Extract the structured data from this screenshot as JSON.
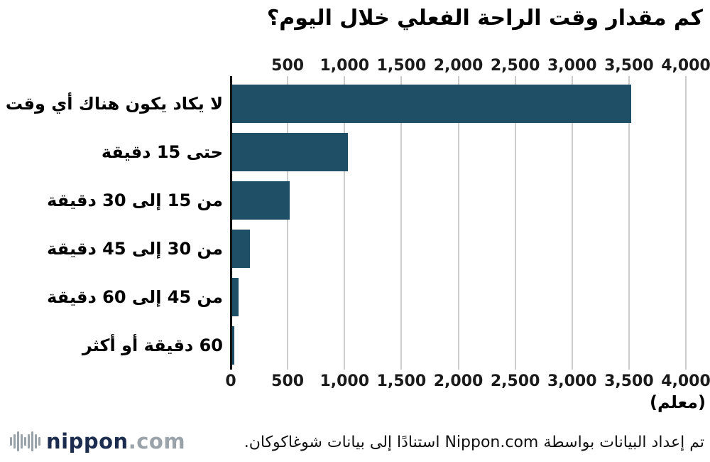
{
  "chart_data": {
    "type": "bar",
    "orientation": "horizontal",
    "title": "كم مقدار وقت الراحة الفعلي خلال اليوم؟",
    "categories": [
      "لا يكاد يكون هناك أي وقت",
      "حتى 15 دقيقة",
      "من 15 إلى 30 دقيقة",
      "من 30 إلى 45 دقيقة",
      "من 45 إلى 60 دقيقة",
      "60 دقيقة أو أكثر"
    ],
    "values": [
      3520,
      1030,
      520,
      170,
      70,
      30
    ],
    "xlim": [
      0,
      4000
    ],
    "grid": true,
    "legend": false,
    "gridline_values": [
      500,
      1000,
      1500,
      2000,
      2500,
      3000,
      3500,
      4000
    ],
    "ticks_top": [
      {
        "v": 500,
        "label": "500"
      },
      {
        "v": 1000,
        "label": "1,000"
      },
      {
        "v": 1500,
        "label": "1,500"
      },
      {
        "v": 2000,
        "label": "2,000"
      },
      {
        "v": 2500,
        "label": "2,500"
      },
      {
        "v": 3000,
        "label": "3,000"
      },
      {
        "v": 3500,
        "label": "3,500"
      },
      {
        "v": 4000,
        "label": "4,000"
      }
    ],
    "ticks_bottom": [
      {
        "v": 0,
        "label": "0"
      },
      {
        "v": 500,
        "label": "500"
      },
      {
        "v": 1000,
        "label": "1,000"
      },
      {
        "v": 1500,
        "label": "1,500"
      },
      {
        "v": 2000,
        "label": "2,000"
      },
      {
        "v": 2500,
        "label": "2,500"
      },
      {
        "v": 3000,
        "label": "3,000"
      },
      {
        "v": 3500,
        "label": "3,500"
      },
      {
        "v": 4000,
        "label": "4,000"
      }
    ],
    "unit_label": "(معلم)",
    "bar_color": "#1e4f66",
    "grid_color": "#cccccc",
    "axis_color": "#111111"
  },
  "footer": {
    "source_text": "تم إعداد البيانات بواسطة Nippon.com استنادًا إلى بيانات شوغاكوكان.",
    "logo": {
      "icon": "soundwave-bars-icon",
      "name_primary": "nippon",
      "name_secondary": ".com"
    }
  }
}
